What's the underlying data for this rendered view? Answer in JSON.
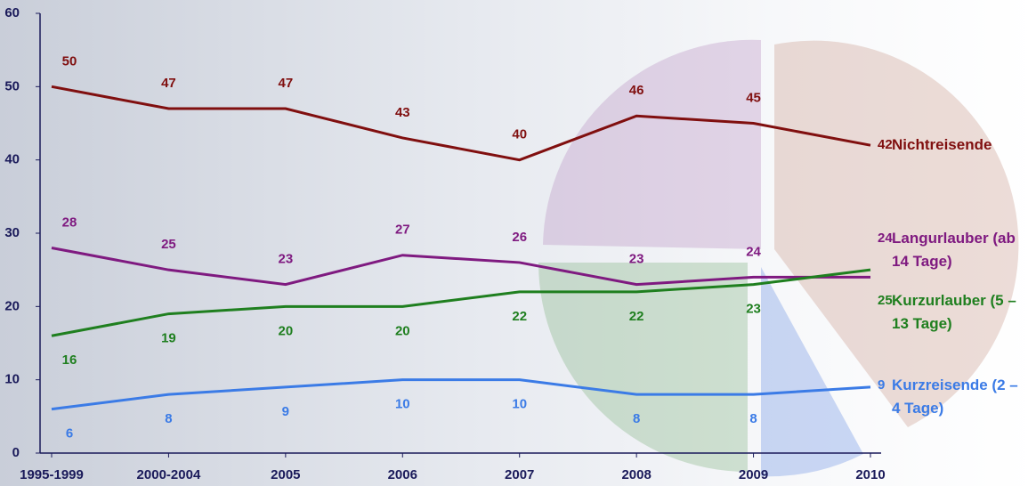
{
  "chart_data": {
    "type": "line",
    "categories": [
      "1995-1999",
      "2000-2004",
      "2005",
      "2006",
      "2007",
      "2008",
      "2009",
      "2010"
    ],
    "series": [
      {
        "name": "Nichtreisende",
        "color": "#800f0f",
        "values": [
          50,
          47,
          47,
          43,
          40,
          46,
          45,
          42
        ]
      },
      {
        "name": "Langurlauber (ab 14 Tage)",
        "color": "#7f1a80",
        "values": [
          28,
          25,
          23,
          27,
          26,
          23,
          24,
          24
        ]
      },
      {
        "name": "Kurzurlauber (5 – 13 Tage)",
        "color": "#1f7f1f",
        "values": [
          16,
          19,
          20,
          20,
          22,
          22,
          23,
          25
        ]
      },
      {
        "name": "Kurzreisende (2 – 4 Tage)",
        "color": "#3b7be6",
        "values": [
          6,
          8,
          9,
          10,
          10,
          8,
          8,
          9
        ]
      }
    ],
    "ylim": [
      0,
      60
    ],
    "yticks": [
      0,
      10,
      20,
      30,
      40,
      50,
      60
    ]
  }
}
